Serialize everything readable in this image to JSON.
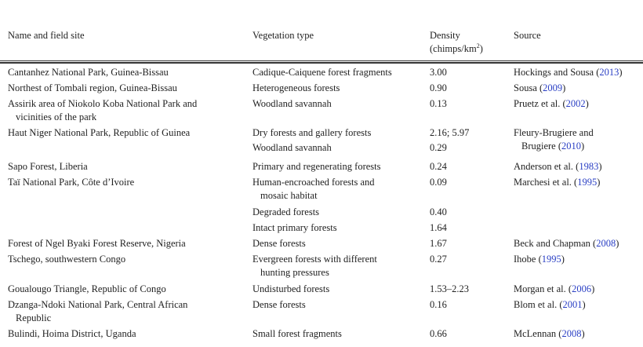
{
  "header": {
    "col1": "Name and field site",
    "col2": "Vegetation type",
    "col3_line1": "Density",
    "col3_line2": "(chimps/km",
    "col3_sup": "2",
    "col3_close": ")",
    "col4": "Source"
  },
  "rows": [
    {
      "site": [
        "Cantanhez National Park, Guinea-Bissau"
      ],
      "vegetation": [
        "Cadique-Caiquene forest fragments"
      ],
      "density": "3.00",
      "source": "Hockings and Sousa (",
      "year": "2013"
    },
    {
      "site": [
        "Northest of Tombali region, Guinea-Bissau"
      ],
      "vegetation": [
        "Heterogeneous forests"
      ],
      "density": "0.90",
      "source": "Sousa (",
      "year": "2009"
    },
    {
      "site": [
        "Assirik area of Niokolo Koba National Park and",
        "vicinities of the park"
      ],
      "vegetation": [
        "Woodland savannah"
      ],
      "density": "0.13",
      "source": "Pruetz et al. (",
      "year": "2002"
    },
    {
      "site": [
        "Haut Niger National Park, Republic of Guinea"
      ],
      "vegetation": [
        "Dry forests and gallery forests"
      ],
      "density": "2.16; 5.97",
      "source_pre": "Fleury-Brugiere and",
      "source": "Brugiere (",
      "year": "2010"
    },
    {
      "site": [],
      "vegetation": [
        "Woodland savannah"
      ],
      "density": "0.29"
    },
    {
      "site": [
        "Sapo Forest, Liberia"
      ],
      "vegetation": [
        "Primary and regenerating forests"
      ],
      "density": "0.24",
      "source": "Anderson et al. (",
      "year": "1983"
    },
    {
      "site": [
        "Taï National Park, Côte d’Ivoire"
      ],
      "vegetation": [
        "Human-encroached forests and",
        "mosaic habitat"
      ],
      "density": "0.09",
      "source": "Marchesi et al. (",
      "year": "1995"
    },
    {
      "site": [],
      "vegetation": [
        "Degraded forests"
      ],
      "density": "0.40"
    },
    {
      "site": [],
      "vegetation": [
        "Intact primary forests"
      ],
      "density": "1.64"
    },
    {
      "site": [
        "Forest of Ngel Byaki Forest Reserve, Nigeria"
      ],
      "vegetation": [
        "Dense forests"
      ],
      "density": "1.67",
      "source": "Beck and Chapman (",
      "year": "2008"
    },
    {
      "site": [
        "Tschego, southwestern Congo"
      ],
      "vegetation": [
        "Evergreen forests with different",
        "hunting pressures"
      ],
      "density": "0.27",
      "source": "Ihobe (",
      "year": "1995"
    },
    {
      "site": [
        "Goualougo Triangle, Republic of Congo"
      ],
      "vegetation": [
        "Undisturbed forests"
      ],
      "density": "1.53–2.23",
      "source": "Morgan et al. (",
      "year": "2006"
    },
    {
      "site": [
        "Dzanga-Ndoki National Park, Central African",
        "Republic"
      ],
      "vegetation": [
        "Dense forests"
      ],
      "density": "0.16",
      "source": "Blom et al. (",
      "year": "2001"
    },
    {
      "site": [
        "Bulindi, Hoima District, Uganda"
      ],
      "vegetation": [
        "Small forest fragments"
      ],
      "density": "0.66",
      "source": "McLennan (",
      "year": "2008"
    }
  ]
}
